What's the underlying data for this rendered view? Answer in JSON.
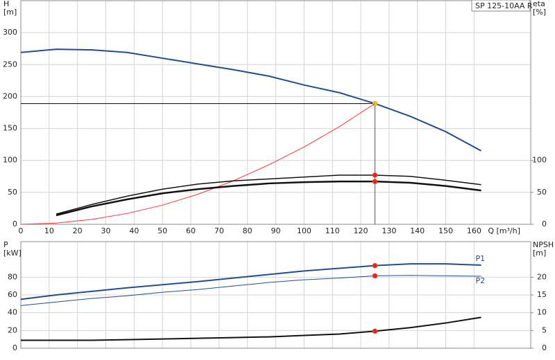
{
  "chart_data": [
    {
      "type": "line",
      "title": "SP 125-10AA R",
      "y_label": [
        "H",
        "[m]"
      ],
      "y2_label": [
        "eta",
        "[%]"
      ],
      "x_label": "Q [m³/h]",
      "xlim": [
        0,
        180
      ],
      "xticks": [
        0,
        10,
        20,
        30,
        40,
        50,
        60,
        70,
        80,
        90,
        100,
        110,
        120,
        130,
        140,
        150,
        160
      ],
      "ylim": [
        0,
        350
      ],
      "yticks": [
        0,
        50,
        100,
        150,
        200,
        250,
        300
      ],
      "y2lim": [
        0,
        350
      ],
      "y2ticks": [
        0,
        50,
        100
      ],
      "grid": true,
      "duty_x": 125,
      "series": [
        {
          "color": "#1f4e8c",
          "width": 2,
          "marker_color": "#f5c518",
          "x": [
            0,
            12.5,
            25,
            37.5,
            50,
            62.5,
            75,
            87.5,
            100,
            112.5,
            125,
            137.5,
            150,
            162.5
          ],
          "values": [
            269,
            274,
            273,
            269,
            260,
            251,
            242,
            232,
            218,
            206,
            189,
            169,
            145,
            115
          ]
        },
        {
          "color": "#ff3333",
          "width": 1,
          "x": [
            0,
            12.5,
            25,
            37.5,
            50,
            62.5,
            75,
            87.5,
            100,
            112.5,
            125
          ],
          "values": [
            0,
            1.9,
            7.6,
            17,
            30,
            47,
            68,
            93,
            121,
            153,
            189
          ]
        },
        {
          "color": "#111111",
          "width": 1.5,
          "axis": "y2",
          "marker_color": "#ff1a1a",
          "x": [
            12.5,
            25,
            37.5,
            50,
            62.5,
            75,
            87.5,
            100,
            112.5,
            125,
            137.5,
            150,
            162.5
          ],
          "values": [
            16,
            31,
            44,
            55,
            63,
            68,
            71,
            74,
            77,
            77,
            75,
            69,
            62
          ]
        },
        {
          "color": "#111111",
          "width": 2.5,
          "axis": "y2",
          "marker_color": "#ff1a1a",
          "x": [
            12.5,
            25,
            37.5,
            50,
            62.5,
            75,
            87.5,
            100,
            112.5,
            125,
            137.5,
            150,
            162.5
          ],
          "values": [
            14,
            28,
            39,
            48.5,
            55,
            60,
            64,
            66,
            67,
            67,
            65,
            60,
            53
          ]
        }
      ]
    },
    {
      "type": "line",
      "y_label": [
        "P",
        "[kW]"
      ],
      "y2_label": [
        "NPSH",
        "[m]"
      ],
      "xlim": [
        0,
        180
      ],
      "xticks": [
        0,
        10,
        20,
        30,
        40,
        50,
        60,
        70,
        80,
        90,
        100,
        110,
        120,
        130,
        140,
        150,
        160
      ],
      "ylim": [
        0,
        120
      ],
      "yticks": [
        0,
        20,
        40,
        60,
        80
      ],
      "y2lim": [
        0,
        30
      ],
      "y2ticks": [
        0,
        5,
        10,
        15,
        20
      ],
      "grid": true,
      "duty_x": 125,
      "series": [
        {
          "name": "P1",
          "color": "#1f4e8c",
          "width": 2,
          "marker_color": "#ff1a1a",
          "x": [
            0,
            12.5,
            25,
            37.5,
            50,
            62.5,
            75,
            87.5,
            100,
            112.5,
            125,
            137.5,
            150,
            162.5
          ],
          "values": [
            55,
            60,
            64,
            68,
            71.5,
            75,
            79,
            83,
            87,
            90,
            93,
            95,
            95,
            93.5
          ]
        },
        {
          "name": "P2",
          "color": "#1f4e8c",
          "width": 1,
          "marker_color": "#ff1a1a",
          "x": [
            0,
            12.5,
            25,
            37.5,
            50,
            62.5,
            75,
            87.5,
            100,
            112.5,
            125,
            137.5,
            150,
            162.5
          ],
          "values": [
            48,
            52,
            56,
            59,
            63,
            66,
            70,
            74,
            77,
            79,
            81.5,
            82,
            81.5,
            81
          ]
        },
        {
          "color": "#111111",
          "width": 2,
          "axis": "y2",
          "marker_color": "#ff1a1a",
          "x": [
            0,
            12.5,
            25,
            37.5,
            50,
            62.5,
            75,
            87.5,
            100,
            112.5,
            125,
            137.5,
            150,
            162.5
          ],
          "values": [
            2.25,
            2.25,
            2.25,
            2.4,
            2.6,
            2.8,
            3.0,
            3.2,
            3.6,
            4.0,
            4.8,
            5.8,
            7.1,
            8.7
          ]
        }
      ]
    }
  ]
}
